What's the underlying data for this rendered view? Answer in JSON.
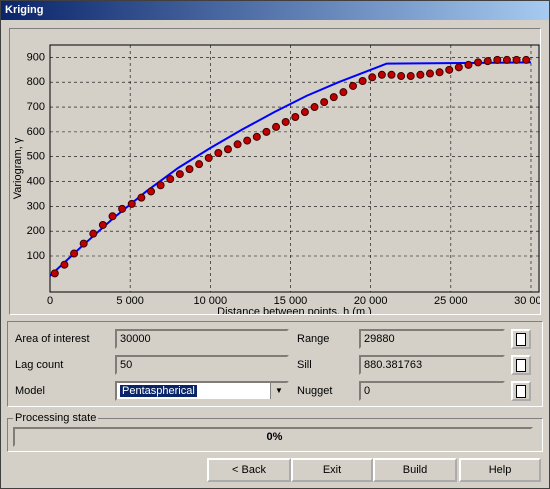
{
  "window": {
    "title": "Kriging"
  },
  "chart_data": {
    "type": "scatter",
    "x_label": "Distance between points, h (m.)",
    "y_label": "Variogram, γ",
    "x": [
      300,
      900,
      1500,
      2100,
      2700,
      3300,
      3900,
      4500,
      5100,
      5700,
      6300,
      6900,
      7500,
      8100,
      8700,
      9300,
      9900,
      10500,
      11100,
      11700,
      12300,
      12900,
      13500,
      14100,
      14700,
      15300,
      15900,
      16500,
      17100,
      17700,
      18300,
      18900,
      19500,
      20100,
      20700,
      21300,
      21900,
      22500,
      23100,
      23700,
      24300,
      24900,
      25500,
      26100,
      26700,
      27300,
      27900,
      28500,
      29100,
      29700
    ],
    "values": [
      30,
      65,
      110,
      150,
      190,
      225,
      260,
      290,
      310,
      335,
      360,
      385,
      410,
      430,
      450,
      470,
      495,
      515,
      530,
      550,
      565,
      580,
      600,
      620,
      640,
      660,
      680,
      700,
      720,
      740,
      760,
      785,
      805,
      820,
      830,
      830,
      825,
      825,
      830,
      835,
      840,
      850,
      860,
      870,
      880,
      885,
      890,
      890,
      890,
      890
    ],
    "color": "#c00000",
    "model": {
      "x": [
        0,
        2000,
        4000,
        6000,
        8000,
        10000,
        12000,
        14000,
        16000,
        18000,
        20000,
        21000,
        30000
      ],
      "values": [
        20,
        140,
        255,
        360,
        455,
        535,
        610,
        680,
        745,
        800,
        850,
        875,
        880
      ],
      "color": "#0000ff"
    },
    "xlim": [
      0,
      30500
    ],
    "ylim": [
      -45,
      950
    ],
    "xticks": [
      0,
      {
        "value": 5000,
        "label": "5 000"
      },
      {
        "value": 10000,
        "label": "10 000"
      },
      {
        "value": 15000,
        "label": "15 000"
      },
      {
        "value": 20000,
        "label": "20 000"
      },
      {
        "value": 25000,
        "label": "25 000"
      },
      {
        "value": 30000,
        "label": "30 000"
      }
    ],
    "yticks": [
      100,
      200,
      300,
      400,
      500,
      600,
      700,
      800,
      900
    ],
    "grid": true
  },
  "form": {
    "area_label": "Area of interest",
    "area_value": "30000",
    "lag_label": "Lag count",
    "lag_value": "50",
    "model_label": "Model",
    "model_value": "Pentaspherical",
    "range_label": "Range",
    "range_value": "29880",
    "sill_label": "Sill",
    "sill_value": "880.381763",
    "nugget_label": "Nugget",
    "nugget_value": "0"
  },
  "progress": {
    "title": "Processing state",
    "text": "0%"
  },
  "buttons": [
    "< Back",
    "Exit",
    "Build",
    "Help"
  ]
}
